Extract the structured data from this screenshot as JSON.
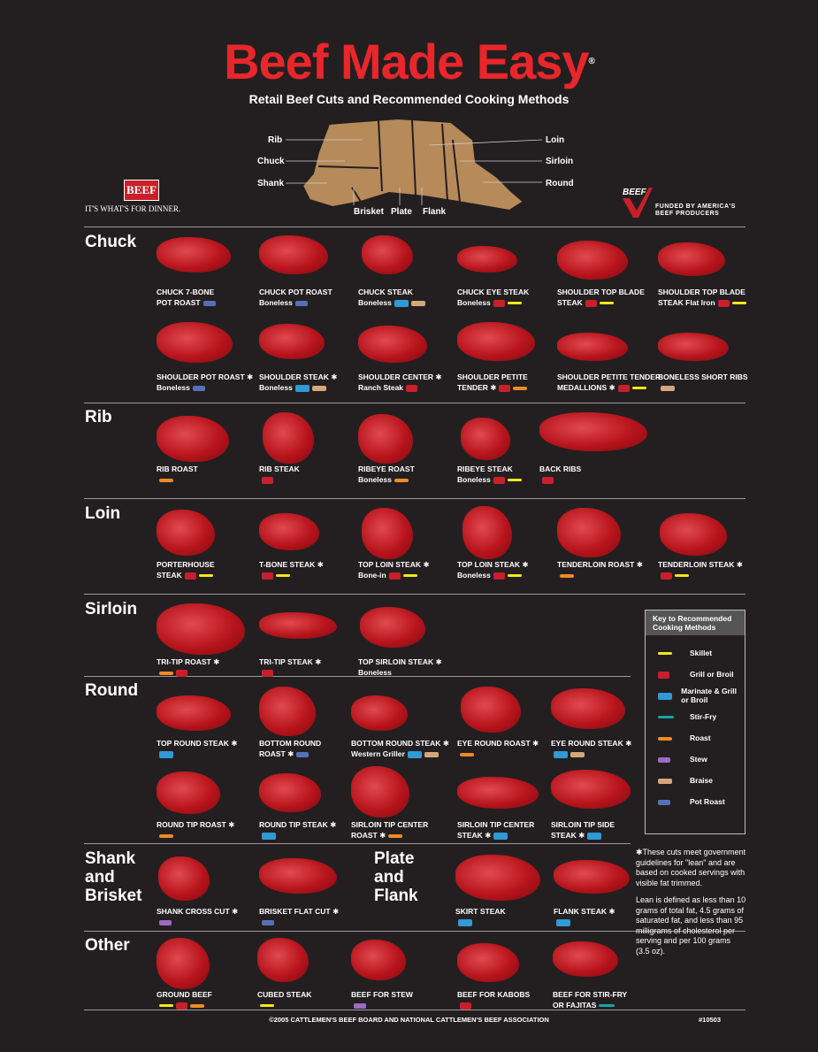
{
  "title": "Beef Made Easy",
  "title_mark": "®",
  "subtitle": "Retail Beef Cuts and Recommended Cooking Methods",
  "diagram": {
    "rib": "Rib",
    "chuck": "Chuck",
    "shank": "Shank",
    "brisket": "Brisket",
    "plate": "Plate",
    "flank": "Flank",
    "loin": "Loin",
    "sirloin": "Sirloin",
    "round": "Round"
  },
  "logo_left": {
    "mark": "BEEF",
    "tagline": "IT'S WHAT'S FOR DINNER."
  },
  "logo_right": {
    "mark": "BEEF",
    "line1": "FUNDED BY AMERICA'S",
    "line2": "BEEF PRODUCERS"
  },
  "colors": {
    "title": "#e8262c",
    "background": "#231f20",
    "meat": "#b8141c"
  },
  "sections": {
    "chuck": "Chuck",
    "rib": "Rib",
    "loin": "Loin",
    "sirloin": "Sirloin",
    "round": "Round",
    "shank": "Shank and Brisket",
    "plate": "Plate and Flank",
    "other": "Other"
  },
  "cuts": {
    "c1": {
      "name": "CHUCK 7-BONE",
      "sub": "POT ROAST",
      "methods": [
        "potroast"
      ]
    },
    "c2": {
      "name": "CHUCK POT ROAST",
      "sub": "Boneless",
      "methods": [
        "potroast"
      ]
    },
    "c3": {
      "name": "CHUCK STEAK",
      "sub": "Boneless",
      "methods": [
        "marinate",
        "braise"
      ]
    },
    "c4": {
      "name": "CHUCK EYE STEAK",
      "sub": "Boneless",
      "methods": [
        "grill",
        "skillet"
      ]
    },
    "c5": {
      "name": "SHOULDER TOP BLADE",
      "sub": "STEAK",
      "methods": [
        "grill",
        "skillet"
      ]
    },
    "c6": {
      "name": "SHOULDER TOP BLADE",
      "sub": "STEAK  Flat Iron",
      "methods": [
        "grill",
        "skillet"
      ]
    },
    "c7": {
      "name": "SHOULDER POT ROAST ✱",
      "sub": "Boneless",
      "methods": [
        "potroast"
      ]
    },
    "c8": {
      "name": "SHOULDER STEAK ✱",
      "sub": "Boneless",
      "methods": [
        "marinate",
        "braise"
      ]
    },
    "c9": {
      "name": "SHOULDER CENTER ✱",
      "sub": "Ranch Steak",
      "methods": [
        "grill"
      ]
    },
    "c10": {
      "name": "SHOULDER PETITE",
      "sub": "TENDER ✱",
      "methods": [
        "grill",
        "roast"
      ]
    },
    "c11": {
      "name": "SHOULDER PETITE TENDER",
      "sub": "MEDALLIONS ✱",
      "methods": [
        "grill",
        "skillet"
      ]
    },
    "c12": {
      "name": "BONELESS SHORT RIBS",
      "sub": "",
      "methods": [
        "braise"
      ]
    },
    "r1": {
      "name": "RIB ROAST",
      "sub": "",
      "methods": [
        "roast"
      ]
    },
    "r2": {
      "name": "RIB STEAK",
      "sub": "",
      "methods": [
        "grill"
      ]
    },
    "r3": {
      "name": "RIBEYE ROAST",
      "sub": "Boneless",
      "methods": [
        "roast"
      ]
    },
    "r4": {
      "name": "RIBEYE STEAK",
      "sub": "Boneless",
      "methods": [
        "grill",
        "skillet"
      ]
    },
    "r5": {
      "name": "BACK RIBS",
      "sub": "",
      "methods": [
        "grill"
      ]
    },
    "l1": {
      "name": "PORTERHOUSE",
      "sub": "STEAK",
      "methods": [
        "grill",
        "skillet"
      ]
    },
    "l2": {
      "name": "T-BONE STEAK ✱",
      "sub": "",
      "methods": [
        "grill",
        "skillet"
      ]
    },
    "l3": {
      "name": "TOP LOIN STEAK ✱",
      "sub": "Bone-in",
      "methods": [
        "grill",
        "skillet"
      ]
    },
    "l4": {
      "name": "TOP LOIN STEAK ✱",
      "sub": "Boneless",
      "methods": [
        "grill",
        "skillet"
      ]
    },
    "l5": {
      "name": "TENDERLOIN ROAST ✱",
      "sub": "",
      "methods": [
        "roast"
      ]
    },
    "l6": {
      "name": "TENDERLOIN STEAK ✱",
      "sub": "",
      "methods": [
        "grill",
        "skillet"
      ]
    },
    "s1": {
      "name": "TRI-TIP ROAST ✱",
      "sub": "",
      "methods": [
        "roast",
        "grill"
      ]
    },
    "s2": {
      "name": "TRI-TIP STEAK ✱",
      "sub": "",
      "methods": [
        "grill"
      ]
    },
    "s3": {
      "name": "TOP SIRLOIN STEAK ✱",
      "sub": "Boneless",
      "methods": []
    },
    "o1": {
      "name": "TOP ROUND STEAK ✱",
      "sub": "",
      "methods": [
        "marinate"
      ]
    },
    "o2": {
      "name": "BOTTOM ROUND",
      "sub": "ROAST ✱",
      "methods": [
        "potroast"
      ]
    },
    "o3": {
      "name": "BOTTOM ROUND STEAK ✱",
      "sub": "Western Griller",
      "methods": [
        "marinate",
        "braise"
      ]
    },
    "o4": {
      "name": "EYE ROUND ROAST ✱",
      "sub": "",
      "methods": [
        "roast"
      ]
    },
    "o5": {
      "name": "EYE ROUND STEAK ✱",
      "sub": "",
      "methods": [
        "marinate",
        "braise"
      ]
    },
    "o6": {
      "name": "ROUND TIP ROAST ✱",
      "sub": "",
      "methods": [
        "roast"
      ]
    },
    "o7": {
      "name": "ROUND TIP STEAK ✱",
      "sub": "",
      "methods": [
        "marinate"
      ]
    },
    "o8": {
      "name": "SIRLOIN TIP CENTER",
      "sub": "ROAST ✱",
      "methods": [
        "roast"
      ]
    },
    "o9": {
      "name": "SIRLOIN TIP CENTER",
      "sub": "STEAK ✱",
      "methods": [
        "marinate"
      ]
    },
    "o10": {
      "name": "SIRLOIN TIP SIDE",
      "sub": "STEAK ✱",
      "methods": [
        "marinate"
      ]
    },
    "b1": {
      "name": "SHANK CROSS CUT ✱",
      "sub": "",
      "methods": [
        "stew"
      ]
    },
    "b2": {
      "name": "BRISKET FLAT CUT ✱",
      "sub": "",
      "methods": [
        "potroast"
      ]
    },
    "p1": {
      "name": "SKIRT STEAK",
      "sub": "",
      "methods": [
        "marinate"
      ]
    },
    "p2": {
      "name": "FLANK STEAK ✱",
      "sub": "",
      "methods": [
        "marinate"
      ]
    },
    "x1": {
      "name": "GROUND BEEF",
      "sub": "",
      "methods": [
        "skillet",
        "grill",
        "roast"
      ]
    },
    "x2": {
      "name": "CUBED STEAK",
      "sub": "",
      "methods": [
        "skillet"
      ]
    },
    "x3": {
      "name": "BEEF FOR STEW",
      "sub": "",
      "methods": [
        "stew"
      ]
    },
    "x4": {
      "name": "BEEF FOR KABOBS",
      "sub": "",
      "methods": [
        "grill"
      ]
    },
    "x5": {
      "name": "BEEF FOR STIR-FRY",
      "sub": "OR FAJITAS",
      "methods": [
        "stirfry"
      ]
    }
  },
  "key": {
    "title": "Key to Recommended Cooking Methods",
    "items": [
      {
        "method": "skillet",
        "label": "Skillet"
      },
      {
        "method": "grill",
        "label": "Grill or Broil"
      },
      {
        "method": "marinate",
        "label": "Marinate & Grill or Broil"
      },
      {
        "method": "stirfry",
        "label": "Stir-Fry"
      },
      {
        "method": "roast",
        "label": "Roast"
      },
      {
        "method": "stew",
        "label": "Stew"
      },
      {
        "method": "braise",
        "label": "Braise"
      },
      {
        "method": "potroast",
        "label": "Pot Roast"
      }
    ]
  },
  "note": {
    "lean": "✱These cuts meet government guidelines for \"lean\" and are based on cooked servings with visible fat trimmed.",
    "definition": "Lean is defined as less than 10 grams of total fat, 4.5 grams of saturated fat, and less than 95 milligrams of cholesterol per serving and per 100 grams (3.5 oz)."
  },
  "footer": "©2005 CATTLEMEN'S BEEF BOARD AND NATIONAL CATTLEMEN'S BEEF ASSOCIATION",
  "code": "#10503"
}
